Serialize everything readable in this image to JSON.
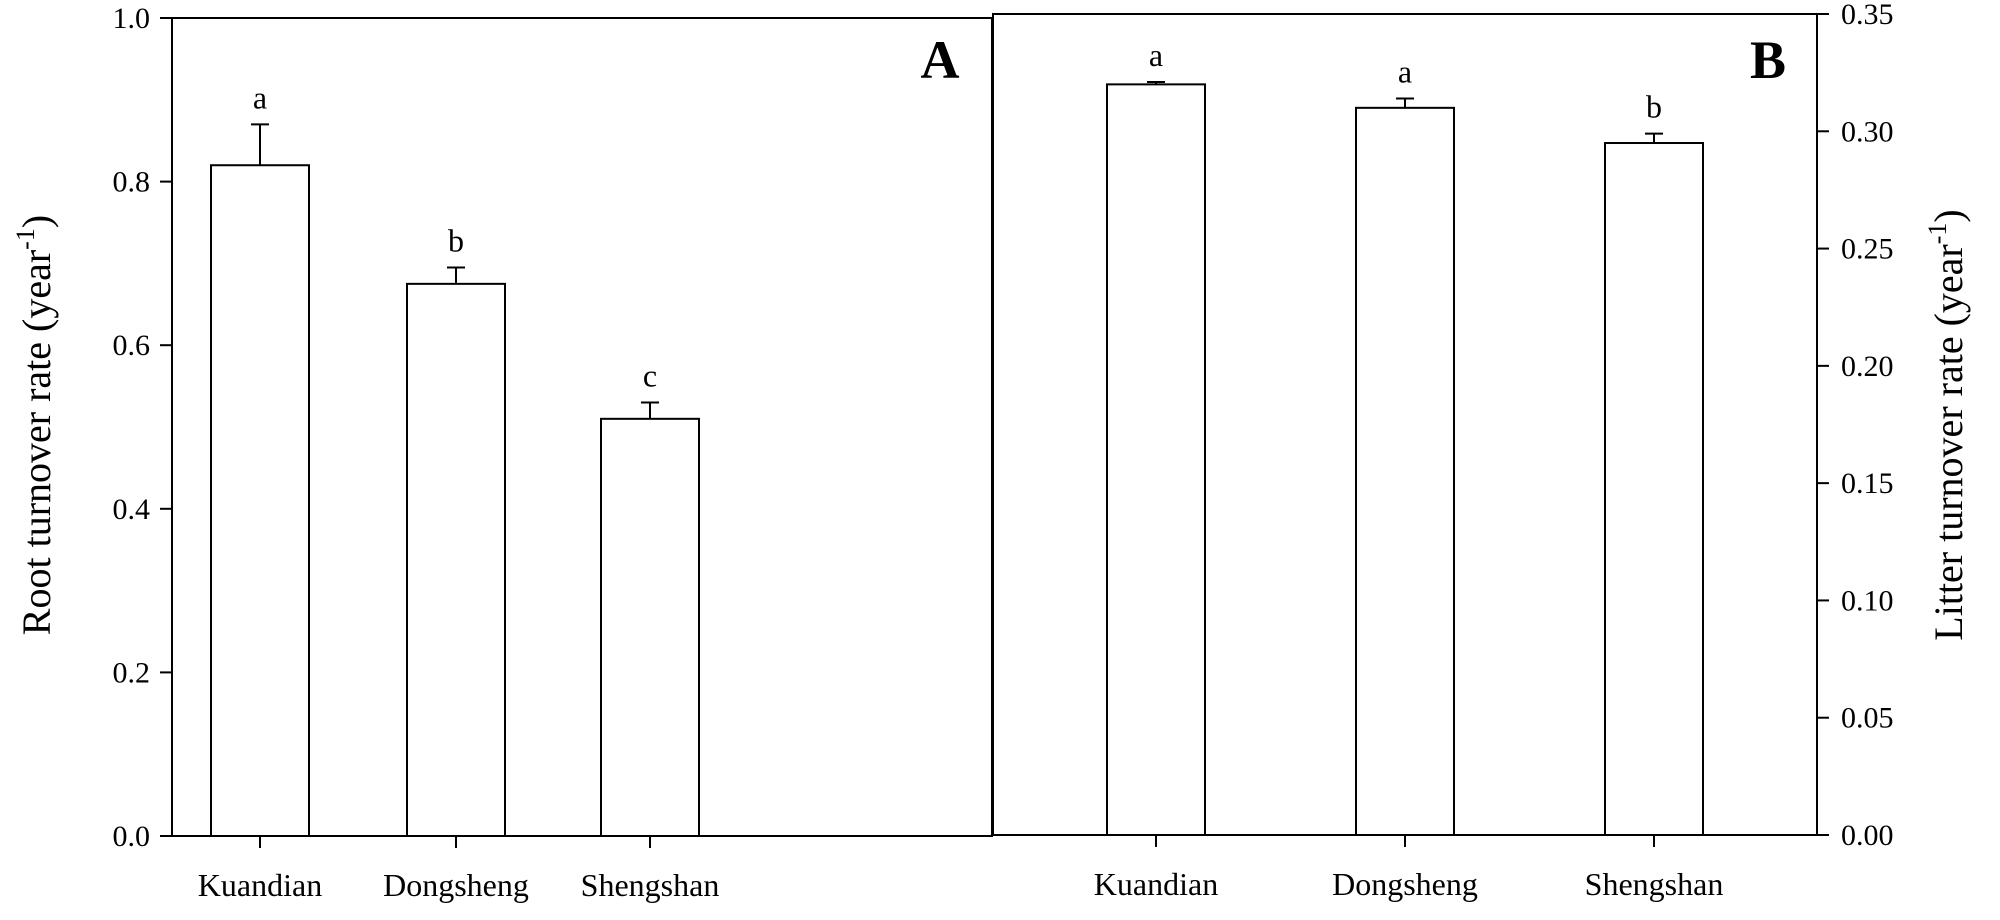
{
  "chart_data": [
    {
      "type": "bar",
      "panel_label": "A",
      "categories": [
        "Kuandian",
        "Dongsheng",
        "Shengshan"
      ],
      "values": [
        0.82,
        0.675,
        0.51
      ],
      "error_upper": [
        0.05,
        0.02,
        0.02
      ],
      "significance": [
        "a",
        "b",
        "c"
      ],
      "ylabel": "Root turnover rate (year",
      "ylabel_superscript": "-1",
      "ylabel_suffix": ")",
      "ylim": [
        0,
        1.0
      ],
      "yticks": [
        "0.0",
        "0.2",
        "0.4",
        "0.6",
        "0.8",
        "1.0"
      ],
      "y_axis_side": "left",
      "grid": false
    },
    {
      "type": "bar",
      "panel_label": "B",
      "categories": [
        "Kuandian",
        "Dongsheng",
        "Shengshan"
      ],
      "values": [
        0.32,
        0.31,
        0.295
      ],
      "error_upper": [
        0.001,
        0.004,
        0.004
      ],
      "significance": [
        "a",
        "a",
        "b"
      ],
      "ylabel": "Litter turnover rate (year",
      "ylabel_superscript": "-1",
      "ylabel_suffix": ")",
      "ylim": [
        0,
        0.35
      ],
      "yticks": [
        "0.00",
        "0.05",
        "0.10",
        "0.15",
        "0.20",
        "0.25",
        "0.30",
        "0.35"
      ],
      "y_axis_side": "right",
      "grid": false
    }
  ]
}
